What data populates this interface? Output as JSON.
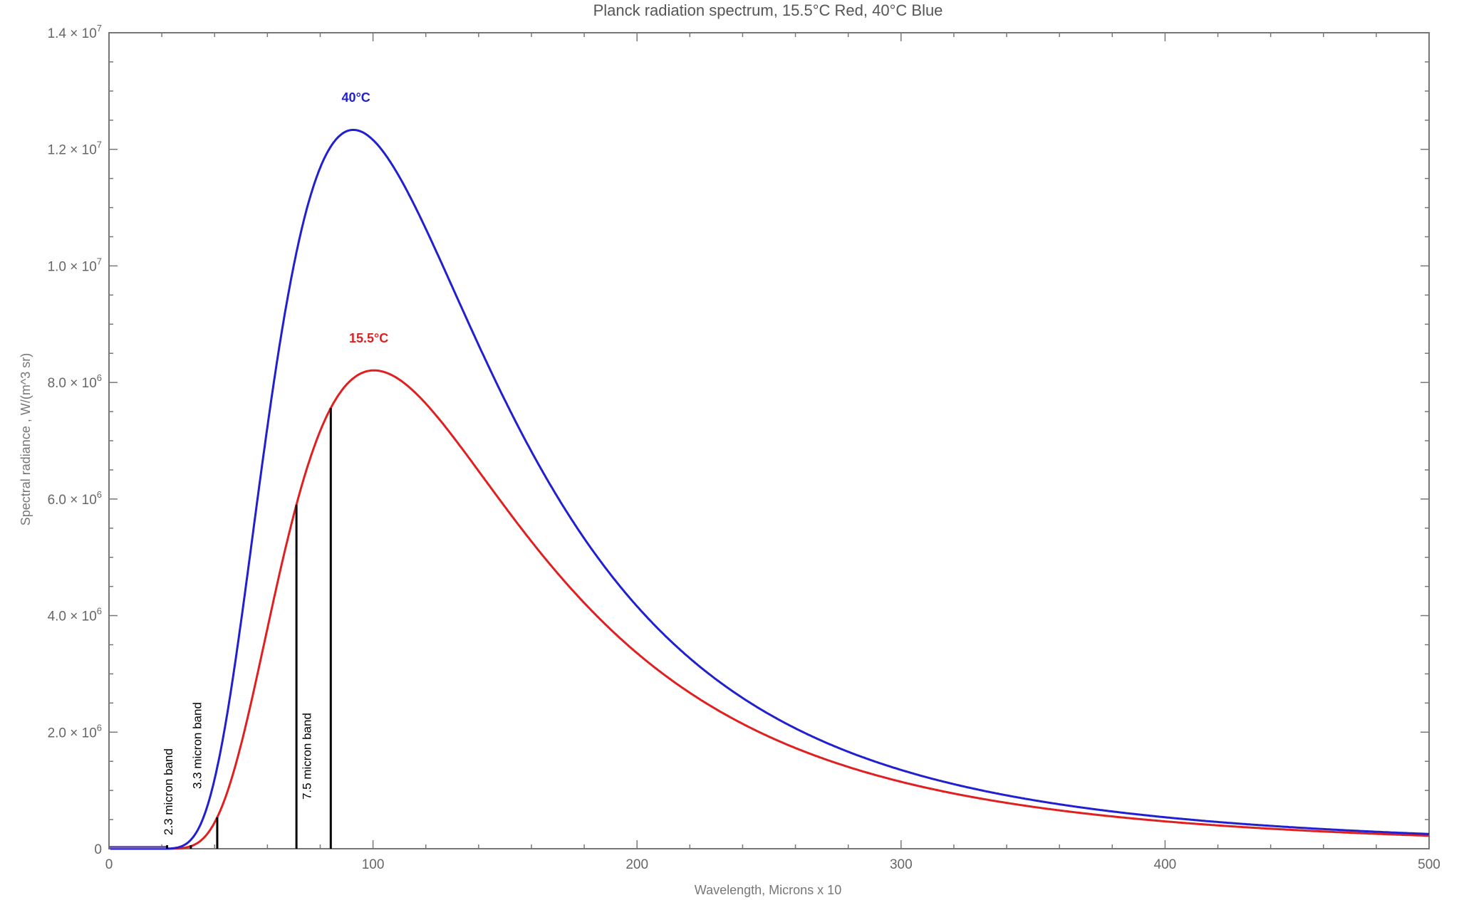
{
  "chart_data": {
    "type": "line",
    "title": "Planck radiation spectrum, 15.5°C Red, 40°C Blue",
    "xlabel": "Wavelength, Microns x 10",
    "ylabel": "Spectral radiance , W/(m^3 sr)",
    "xlim": [
      0,
      500
    ],
    "ylim": [
      0,
      14000000
    ],
    "x_ticks": [
      {
        "value": 0,
        "label": "0"
      },
      {
        "value": 100,
        "label": "100"
      },
      {
        "value": 200,
        "label": "200"
      },
      {
        "value": 300,
        "label": "300"
      },
      {
        "value": 400,
        "label": "400"
      },
      {
        "value": 500,
        "label": "500"
      }
    ],
    "x_minor_step": 20,
    "y_ticks": [
      {
        "value": 0,
        "mantissa": "0",
        "exp": ""
      },
      {
        "value": 2000000,
        "mantissa": "2.0 × 10",
        "exp": "6"
      },
      {
        "value": 4000000,
        "mantissa": "4.0 × 10",
        "exp": "6"
      },
      {
        "value": 6000000,
        "mantissa": "6.0 × 10",
        "exp": "6"
      },
      {
        "value": 8000000,
        "mantissa": "8.0 × 10",
        "exp": "6"
      },
      {
        "value": 10000000,
        "mantissa": "1.0 × 10",
        "exp": "7"
      },
      {
        "value": 12000000,
        "mantissa": "1.2 × 10",
        "exp": "7"
      },
      {
        "value": 14000000,
        "mantissa": "1.4 × 10",
        "exp": "7"
      }
    ],
    "y_minor_step": 500000,
    "grid": false,
    "series": [
      {
        "name": "15.5°C",
        "temperature_C": 15.5,
        "color": "#e02020",
        "peak_x": 100,
        "peak_y": 8170000
      },
      {
        "name": "40°C",
        "temperature_C": 40,
        "color": "#2020d0",
        "peak_x": 93,
        "peak_y": 12300000
      }
    ],
    "band_lines": {
      "color": "#000000",
      "x": [
        22,
        31,
        41,
        71,
        84
      ],
      "series": "15.5°C"
    },
    "annotations": [
      {
        "text": "2.3 micron band"
      },
      {
        "text": "3.3 micron band"
      },
      {
        "text": "7.5 micron band"
      }
    ]
  }
}
